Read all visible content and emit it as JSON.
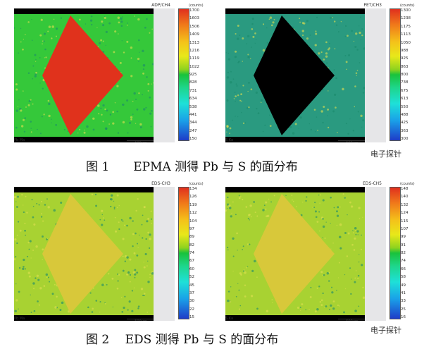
{
  "figure1": {
    "caption": "图 1　　EPMA 测得 Pb 与 S 的面分布",
    "watermark": "电子探针",
    "panels": [
      {
        "channel": "ADP/CH4",
        "element": "Pb Ma",
        "units": "(counts)",
        "scale": "500μm",
        "ticks": [
          "1700",
          "1603",
          "1506",
          "1409",
          "1313",
          "1216",
          "1119",
          "1022",
          "925",
          "828",
          "731",
          "634",
          "538",
          "441",
          "344",
          "247",
          "150"
        ],
        "diamond_color": "#e0321c",
        "matrix_color": "#35c83a"
      },
      {
        "channel": "PET/CH3",
        "element": "S Ka",
        "units": "(counts)",
        "scale": "500μm",
        "ticks": [
          "1300",
          "1238",
          "1175",
          "1113",
          "1050",
          "988",
          "925",
          "863",
          "800",
          "738",
          "675",
          "613",
          "550",
          "488",
          "425",
          "363",
          "300"
        ],
        "diamond_color": "#000000",
        "matrix_color": "#2a9a80"
      }
    ]
  },
  "figure2": {
    "caption": "图 2　 EDS 测得 Pb 与 S 的面分布",
    "watermark": "电子探针",
    "panels": [
      {
        "channel": "EDS-CH3",
        "element": "Pb Ma",
        "units": "(counts)",
        "scale": "500μm",
        "ticks": [
          "134",
          "126",
          "119",
          "112",
          "104",
          "97",
          "89",
          "82",
          "74",
          "67",
          "60",
          "52",
          "45",
          "37",
          "30",
          "22",
          "15"
        ],
        "diamond_color": "#d8c83a",
        "matrix_color": "#a8d232"
      },
      {
        "channel": "EDS-CH5",
        "element": "S Ka",
        "units": "(counts)",
        "scale": "500μm",
        "ticks": [
          "148",
          "140",
          "132",
          "124",
          "115",
          "107",
          "99",
          "91",
          "82",
          "74",
          "66",
          "58",
          "49",
          "41",
          "33",
          "25",
          "16"
        ],
        "diamond_color": "#d8c83a",
        "matrix_color": "#a8d232"
      }
    ]
  }
}
